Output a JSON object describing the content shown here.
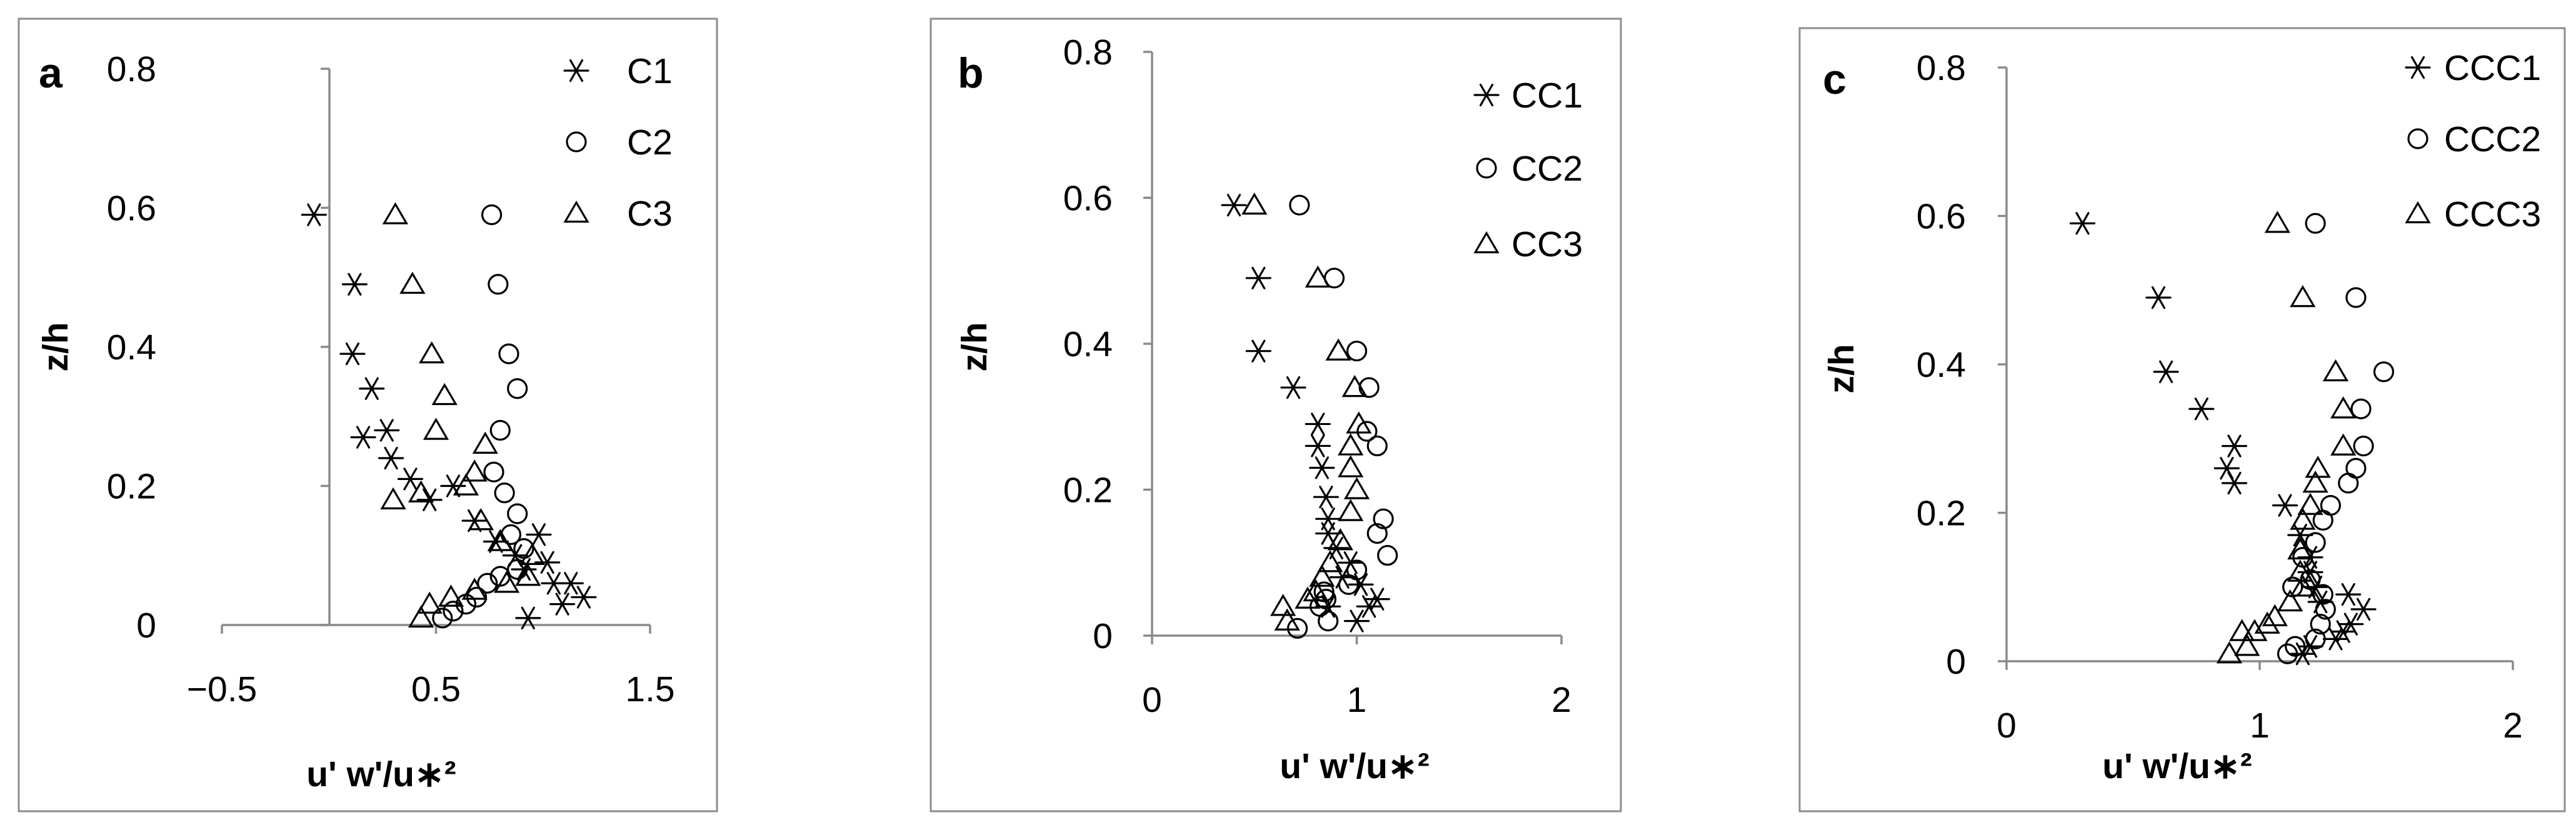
{
  "chart_data": [
    {
      "type": "scatter",
      "panel_label": "a",
      "xlabel": "u' w'/u∗²",
      "ylabel": "z/h",
      "xlim": [
        -0.5,
        1.5
      ],
      "ylim": [
        0,
        0.8
      ],
      "x_ticks": [
        -0.5,
        0.5,
        1.5
      ],
      "x_tick_labels": [
        "−0.5",
        "0.5",
        "1.5"
      ],
      "y_ticks": [
        0,
        0.2,
        0.4,
        0.6,
        0.8
      ],
      "y_tick_labels": [
        "0",
        "0.2",
        "0.4",
        "0.6",
        "0.8"
      ],
      "legend_position": "top-right",
      "series": [
        {
          "name": "C1",
          "marker": "asterisk",
          "points": [
            [
              -0.07,
              0.59
            ],
            [
              0.12,
              0.49
            ],
            [
              0.11,
              0.39
            ],
            [
              0.2,
              0.34
            ],
            [
              0.27,
              0.28
            ],
            [
              0.16,
              0.27
            ],
            [
              0.29,
              0.24
            ],
            [
              0.38,
              0.21
            ],
            [
              0.47,
              0.18
            ],
            [
              0.58,
              0.2
            ],
            [
              0.68,
              0.15
            ],
            [
              0.78,
              0.12
            ],
            [
              0.87,
              0.1
            ],
            [
              0.91,
              0.08
            ],
            [
              0.98,
              0.13
            ],
            [
              1.02,
              0.09
            ],
            [
              1.05,
              0.06
            ],
            [
              1.13,
              0.06
            ],
            [
              1.19,
              0.04
            ],
            [
              1.09,
              0.03
            ],
            [
              0.93,
              0.01
            ]
          ]
        },
        {
          "name": "C2",
          "marker": "circle",
          "points": [
            [
              0.76,
              0.59
            ],
            [
              0.79,
              0.49
            ],
            [
              0.84,
              0.39
            ],
            [
              0.88,
              0.34
            ],
            [
              0.8,
              0.28
            ],
            [
              0.77,
              0.22
            ],
            [
              0.82,
              0.19
            ],
            [
              0.88,
              0.16
            ],
            [
              0.85,
              0.13
            ],
            [
              0.91,
              0.11
            ],
            [
              0.88,
              0.08
            ],
            [
              0.8,
              0.07
            ],
            [
              0.74,
              0.06
            ],
            [
              0.69,
              0.04
            ],
            [
              0.64,
              0.03
            ],
            [
              0.58,
              0.02
            ],
            [
              0.53,
              0.01
            ]
          ]
        },
        {
          "name": "C3",
          "marker": "triangle",
          "points": [
            [
              0.31,
              0.59
            ],
            [
              0.39,
              0.49
            ],
            [
              0.48,
              0.39
            ],
            [
              0.54,
              0.33
            ],
            [
              0.5,
              0.28
            ],
            [
              0.73,
              0.26
            ],
            [
              0.68,
              0.22
            ],
            [
              0.64,
              0.2
            ],
            [
              0.43,
              0.19
            ],
            [
              0.3,
              0.18
            ],
            [
              0.71,
              0.15
            ],
            [
              0.8,
              0.12
            ],
            [
              0.95,
              0.1
            ],
            [
              0.93,
              0.07
            ],
            [
              0.83,
              0.06
            ],
            [
              0.68,
              0.05
            ],
            [
              0.57,
              0.04
            ],
            [
              0.47,
              0.03
            ],
            [
              0.43,
              0.01
            ]
          ]
        }
      ]
    },
    {
      "type": "scatter",
      "panel_label": "b",
      "xlabel": "u' w'/u∗²",
      "ylabel": "z/h",
      "xlim": [
        0,
        2
      ],
      "ylim": [
        0,
        0.8
      ],
      "x_ticks": [
        0,
        1,
        2
      ],
      "x_tick_labels": [
        "0",
        "1",
        "2"
      ],
      "y_ticks": [
        0,
        0.2,
        0.4,
        0.6,
        0.8
      ],
      "y_tick_labels": [
        "0",
        "0.2",
        "0.4",
        "0.6",
        "0.8"
      ],
      "legend_position": "top-right",
      "series": [
        {
          "name": "CC1",
          "marker": "asterisk",
          "points": [
            [
              0.4,
              0.59
            ],
            [
              0.52,
              0.49
            ],
            [
              0.52,
              0.39
            ],
            [
              0.69,
              0.34
            ],
            [
              0.81,
              0.29
            ],
            [
              0.81,
              0.26
            ],
            [
              0.83,
              0.23
            ],
            [
              0.85,
              0.19
            ],
            [
              0.86,
              0.16
            ],
            [
              0.86,
              0.14
            ],
            [
              0.9,
              0.12
            ],
            [
              0.97,
              0.1
            ],
            [
              0.93,
              0.08
            ],
            [
              1.02,
              0.07
            ],
            [
              1.1,
              0.05
            ],
            [
              1.06,
              0.04
            ],
            [
              1.0,
              0.02
            ],
            [
              0.86,
              0.04
            ]
          ]
        },
        {
          "name": "CC2",
          "marker": "circle",
          "points": [
            [
              0.72,
              0.59
            ],
            [
              0.89,
              0.49
            ],
            [
              1.0,
              0.39
            ],
            [
              1.06,
              0.34
            ],
            [
              1.05,
              0.28
            ],
            [
              1.1,
              0.26
            ],
            [
              1.13,
              0.16
            ],
            [
              1.1,
              0.14
            ],
            [
              1.15,
              0.11
            ],
            [
              1.0,
              0.09
            ],
            [
              0.96,
              0.07
            ],
            [
              0.84,
              0.06
            ],
            [
              0.85,
              0.05
            ],
            [
              0.82,
              0.04
            ],
            [
              0.86,
              0.02
            ],
            [
              0.71,
              0.01
            ]
          ]
        },
        {
          "name": "CC3",
          "marker": "triangle",
          "points": [
            [
              0.5,
              0.59
            ],
            [
              0.81,
              0.49
            ],
            [
              0.91,
              0.39
            ],
            [
              0.99,
              0.34
            ],
            [
              1.01,
              0.29
            ],
            [
              0.97,
              0.26
            ],
            [
              0.97,
              0.23
            ],
            [
              1.0,
              0.2
            ],
            [
              0.97,
              0.17
            ],
            [
              0.92,
              0.13
            ],
            [
              0.87,
              0.1
            ],
            [
              0.83,
              0.08
            ],
            [
              0.8,
              0.06
            ],
            [
              0.76,
              0.05
            ],
            [
              0.64,
              0.04
            ],
            [
              0.66,
              0.02
            ]
          ]
        }
      ]
    },
    {
      "type": "scatter",
      "panel_label": "c",
      "xlabel": "u' w'/u∗²",
      "ylabel": "z/h",
      "xlim": [
        0,
        2
      ],
      "ylim": [
        0,
        0.8
      ],
      "x_ticks": [
        0,
        1,
        2
      ],
      "x_tick_labels": [
        "0",
        "1",
        "2"
      ],
      "y_ticks": [
        0,
        0.2,
        0.4,
        0.6,
        0.8
      ],
      "y_tick_labels": [
        "0",
        "0.2",
        "0.4",
        "0.6",
        "0.8"
      ],
      "legend_position": "top-right",
      "series": [
        {
          "name": "CCC1",
          "marker": "asterisk",
          "points": [
            [
              0.3,
              0.59
            ],
            [
              0.6,
              0.49
            ],
            [
              0.63,
              0.39
            ],
            [
              0.77,
              0.34
            ],
            [
              0.9,
              0.29
            ],
            [
              0.9,
              0.24
            ],
            [
              0.87,
              0.26
            ],
            [
              1.1,
              0.21
            ],
            [
              1.16,
              0.17
            ],
            [
              1.2,
              0.14
            ],
            [
              1.2,
              0.12
            ],
            [
              1.22,
              0.1
            ],
            [
              1.24,
              0.08
            ],
            [
              1.35,
              0.09
            ],
            [
              1.41,
              0.07
            ],
            [
              1.36,
              0.05
            ],
            [
              1.33,
              0.04
            ],
            [
              1.3,
              0.03
            ],
            [
              1.2,
              0.02
            ],
            [
              1.17,
              0.01
            ]
          ]
        },
        {
          "name": "CCC2",
          "marker": "circle",
          "points": [
            [
              1.22,
              0.59
            ],
            [
              1.38,
              0.49
            ],
            [
              1.49,
              0.39
            ],
            [
              1.4,
              0.34
            ],
            [
              1.41,
              0.29
            ],
            [
              1.38,
              0.26
            ],
            [
              1.35,
              0.24
            ],
            [
              1.28,
              0.21
            ],
            [
              1.25,
              0.19
            ],
            [
              1.22,
              0.16
            ],
            [
              1.17,
              0.14
            ],
            [
              1.2,
              0.11
            ],
            [
              1.13,
              0.1
            ],
            [
              1.25,
              0.09
            ],
            [
              1.26,
              0.07
            ],
            [
              1.24,
              0.05
            ],
            [
              1.22,
              0.03
            ],
            [
              1.14,
              0.02
            ],
            [
              1.11,
              0.01
            ]
          ]
        },
        {
          "name": "CCC3",
          "marker": "triangle",
          "points": [
            [
              1.07,
              0.59
            ],
            [
              1.17,
              0.49
            ],
            [
              1.3,
              0.39
            ],
            [
              1.33,
              0.34
            ],
            [
              1.33,
              0.29
            ],
            [
              1.23,
              0.26
            ],
            [
              1.22,
              0.24
            ],
            [
              1.2,
              0.21
            ],
            [
              1.17,
              0.19
            ],
            [
              1.16,
              0.15
            ],
            [
              1.16,
              0.12
            ],
            [
              1.17,
              0.1
            ],
            [
              1.12,
              0.08
            ],
            [
              1.06,
              0.06
            ],
            [
              1.03,
              0.05
            ],
            [
              0.98,
              0.04
            ],
            [
              0.93,
              0.04
            ],
            [
              0.95,
              0.02
            ],
            [
              0.88,
              0.01
            ]
          ]
        }
      ]
    }
  ]
}
